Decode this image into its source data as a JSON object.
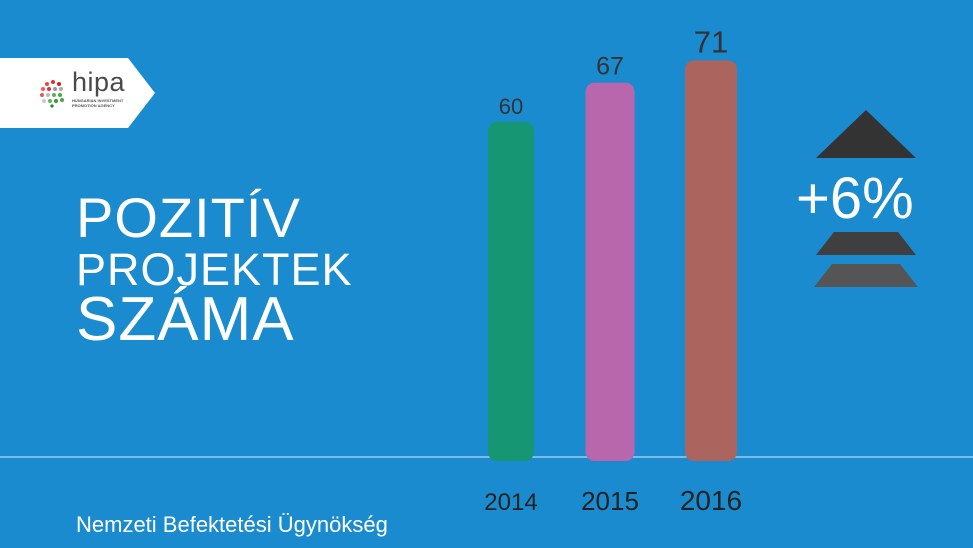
{
  "logo": {
    "name": "hipa",
    "subtitle": "HUNGARIAN INVESTMENT PROMOTION AGENCY"
  },
  "title": {
    "line1": "POZITÍV",
    "line2": "PROJEKTEK",
    "line3": "SZÁMA"
  },
  "footer": "Nemzeti Befektetési Ügynökség",
  "change": {
    "label": "+6%"
  },
  "colors": {
    "background": "#1b8bd0",
    "bar2014": "#179674",
    "bar2015": "#b967ad",
    "bar2016": "#ac655e",
    "arrow": "#333333"
  },
  "chart_data": {
    "type": "bar",
    "categories": [
      "2014",
      "2015",
      "2016"
    ],
    "values": [
      60,
      67,
      71
    ],
    "ylim": [
      0,
      75
    ],
    "grid": false
  }
}
